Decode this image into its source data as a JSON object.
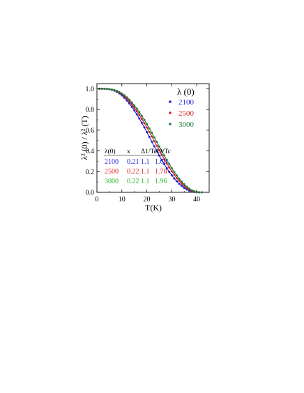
{
  "chart_data": {
    "type": "scatter",
    "xlabel": "T(K)",
    "ylabel": "λ² (0) / λ² (T)",
    "xlim": [
      0,
      45
    ],
    "ylim": [
      0,
      1.05
    ],
    "x_ticks": [
      0,
      10,
      20,
      30,
      40
    ],
    "y_ticks": [
      0.0,
      0.2,
      0.4,
      0.6,
      0.8,
      1.0
    ],
    "x_tick_labels": [
      "0",
      "10",
      "20",
      "30",
      "40"
    ],
    "y_tick_labels": [
      "0.0",
      "0.2",
      "0.4",
      "0.6",
      "0.8",
      "1.0"
    ],
    "legend": {
      "title": "λ (0)",
      "position": "top-right",
      "entries": [
        {
          "label": "2100",
          "color": "#1f1fd6"
        },
        {
          "label": "2500",
          "color": "#d61f1f"
        },
        {
          "label": "3000",
          "color": "#1f7a3a"
        }
      ]
    },
    "table": {
      "headers": [
        "λ(0)",
        "x",
        "Δ1/Tc",
        "Δ2/Tc"
      ],
      "rows": [
        {
          "values": [
            "2100",
            "0.21",
            "1.1",
            "1.60"
          ],
          "color": "#1f1fd6"
        },
        {
          "values": [
            "2500",
            "0.22",
            "1.1",
            "1.78"
          ],
          "color": "#e01f1f"
        },
        {
          "values": [
            "3000",
            "0.22",
            "1.1",
            "1.96"
          ],
          "color": "#22b822"
        }
      ]
    },
    "series": [
      {
        "name": "2100",
        "color": "#1f1fd6",
        "x": [
          1,
          2,
          3,
          4,
          5,
          6,
          7,
          8,
          9,
          10,
          11,
          12,
          13,
          14,
          15,
          16,
          17,
          18,
          19,
          20,
          21,
          22,
          23,
          24,
          25,
          26,
          27,
          28,
          29,
          30,
          31,
          32,
          33,
          34,
          35,
          36,
          37,
          38,
          39,
          40,
          41,
          42
        ],
        "y": [
          1.0,
          1.0,
          1.0,
          0.998,
          0.995,
          0.99,
          0.982,
          0.97,
          0.955,
          0.936,
          0.913,
          0.887,
          0.858,
          0.826,
          0.791,
          0.753,
          0.713,
          0.671,
          0.627,
          0.582,
          0.536,
          0.49,
          0.444,
          0.399,
          0.355,
          0.312,
          0.272,
          0.233,
          0.198,
          0.165,
          0.134,
          0.107,
          0.082,
          0.061,
          0.043,
          0.028,
          0.016,
          0.008,
          0.003,
          0.001,
          0.0,
          0.0
        ]
      },
      {
        "name": "2500",
        "color": "#d61f1f",
        "x": [
          1,
          2,
          3,
          4,
          5,
          6,
          7,
          8,
          9,
          10,
          11,
          12,
          13,
          14,
          15,
          16,
          17,
          18,
          19,
          20,
          21,
          22,
          23,
          24,
          25,
          26,
          27,
          28,
          29,
          30,
          31,
          32,
          33,
          34,
          35,
          36,
          37,
          38,
          39,
          40,
          41,
          42
        ],
        "y": [
          1.0,
          1.0,
          1.0,
          0.999,
          0.996,
          0.992,
          0.985,
          0.975,
          0.962,
          0.946,
          0.926,
          0.903,
          0.877,
          0.849,
          0.817,
          0.783,
          0.747,
          0.708,
          0.668,
          0.626,
          0.583,
          0.539,
          0.494,
          0.45,
          0.406,
          0.362,
          0.32,
          0.279,
          0.24,
          0.203,
          0.169,
          0.137,
          0.109,
          0.083,
          0.061,
          0.042,
          0.026,
          0.014,
          0.006,
          0.002,
          0.0,
          0.0
        ]
      },
      {
        "name": "3000",
        "color": "#1f7a3a",
        "x": [
          1,
          2,
          3,
          4,
          5,
          6,
          7,
          8,
          9,
          10,
          11,
          12,
          13,
          14,
          15,
          16,
          17,
          18,
          19,
          20,
          21,
          22,
          23,
          24,
          25,
          26,
          27,
          28,
          29,
          30,
          31,
          32,
          33,
          34,
          35,
          36,
          37,
          38,
          39,
          40,
          41,
          42
        ],
        "y": [
          1.0,
          1.0,
          1.0,
          0.999,
          0.997,
          0.993,
          0.987,
          0.979,
          0.968,
          0.954,
          0.937,
          0.917,
          0.894,
          0.868,
          0.839,
          0.808,
          0.774,
          0.738,
          0.7,
          0.66,
          0.618,
          0.575,
          0.531,
          0.487,
          0.442,
          0.398,
          0.355,
          0.313,
          0.272,
          0.233,
          0.197,
          0.163,
          0.131,
          0.103,
          0.077,
          0.055,
          0.036,
          0.021,
          0.01,
          0.003,
          0.0,
          0.0
        ]
      }
    ]
  }
}
